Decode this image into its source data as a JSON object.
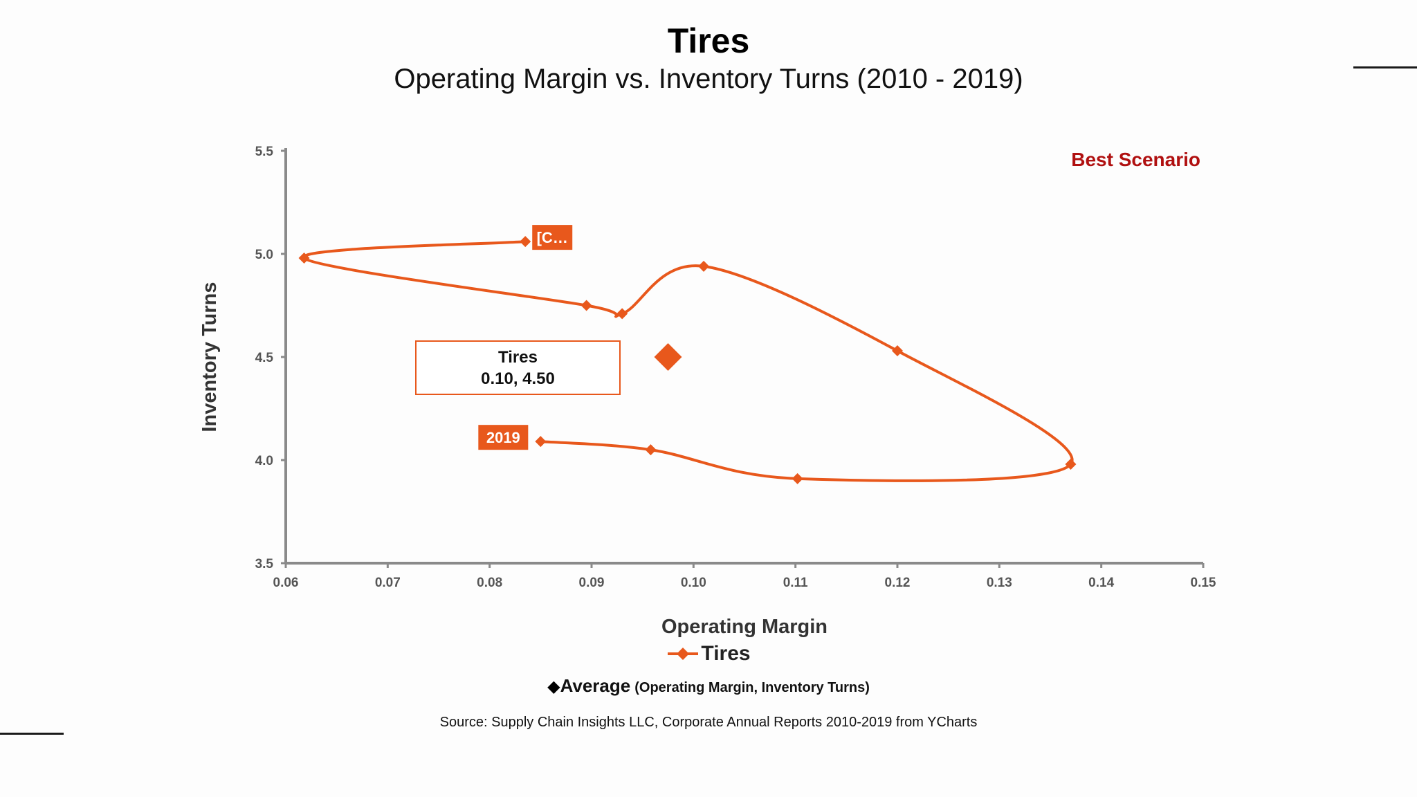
{
  "page": {
    "title": "Tires",
    "subtitle": "Operating Margin vs. Inventory Turns (2010 - 2019)",
    "source": "Source:  Supply Chain Insights LLC, Corporate Annual Reports 2010-2019 from YCharts"
  },
  "legend": {
    "series_label": "Tires",
    "average_glyph": "◆",
    "average_label": "Average",
    "average_sub": "(Operating Margin, Inventory Turns)"
  },
  "colors": {
    "series": "#E8581C",
    "axis": "#8a8a8a",
    "best_scenario": "#B01010",
    "label_text": "#ffffff",
    "callout_border": "#E8581C"
  },
  "chart_data": {
    "type": "scatter",
    "title": "Tires",
    "subtitle": "Operating Margin vs. Inventory Turns (2010 - 2019)",
    "xlabel": "Operating Margin",
    "ylabel": "Inventory Turns",
    "xlim": [
      0.06,
      0.15
    ],
    "ylim": [
      3.5,
      5.5
    ],
    "xticks": [
      "0.06",
      "0.07",
      "0.08",
      "0.09",
      "0.10",
      "0.11",
      "0.12",
      "0.13",
      "0.14",
      "0.15"
    ],
    "yticks": [
      "3.5",
      "4.0",
      "4.5",
      "5.0",
      "5.5"
    ],
    "grid": false,
    "corner_annotation": "Best Scenario",
    "series": [
      {
        "name": "Tires",
        "connected": true,
        "smooth": true,
        "marker": "diamond",
        "points": [
          {
            "x": 0.0835,
            "y": 5.06
          },
          {
            "x": 0.0618,
            "y": 4.98
          },
          {
            "x": 0.0895,
            "y": 4.75
          },
          {
            "x": 0.093,
            "y": 4.71
          },
          {
            "x": 0.101,
            "y": 4.94
          },
          {
            "x": 0.12,
            "y": 4.53
          },
          {
            "x": 0.137,
            "y": 3.98
          },
          {
            "x": 0.1102,
            "y": 3.91
          },
          {
            "x": 0.0958,
            "y": 4.05
          },
          {
            "x": 0.085,
            "y": 4.09
          }
        ]
      }
    ],
    "point_labels": [
      {
        "point_index": 0,
        "text": "[C…"
      },
      {
        "point_index": 9,
        "text": "2019"
      }
    ],
    "average": {
      "x": 0.0975,
      "y": 4.5,
      "callout_title": "Tires",
      "callout_value": "0.10, 4.50"
    }
  }
}
